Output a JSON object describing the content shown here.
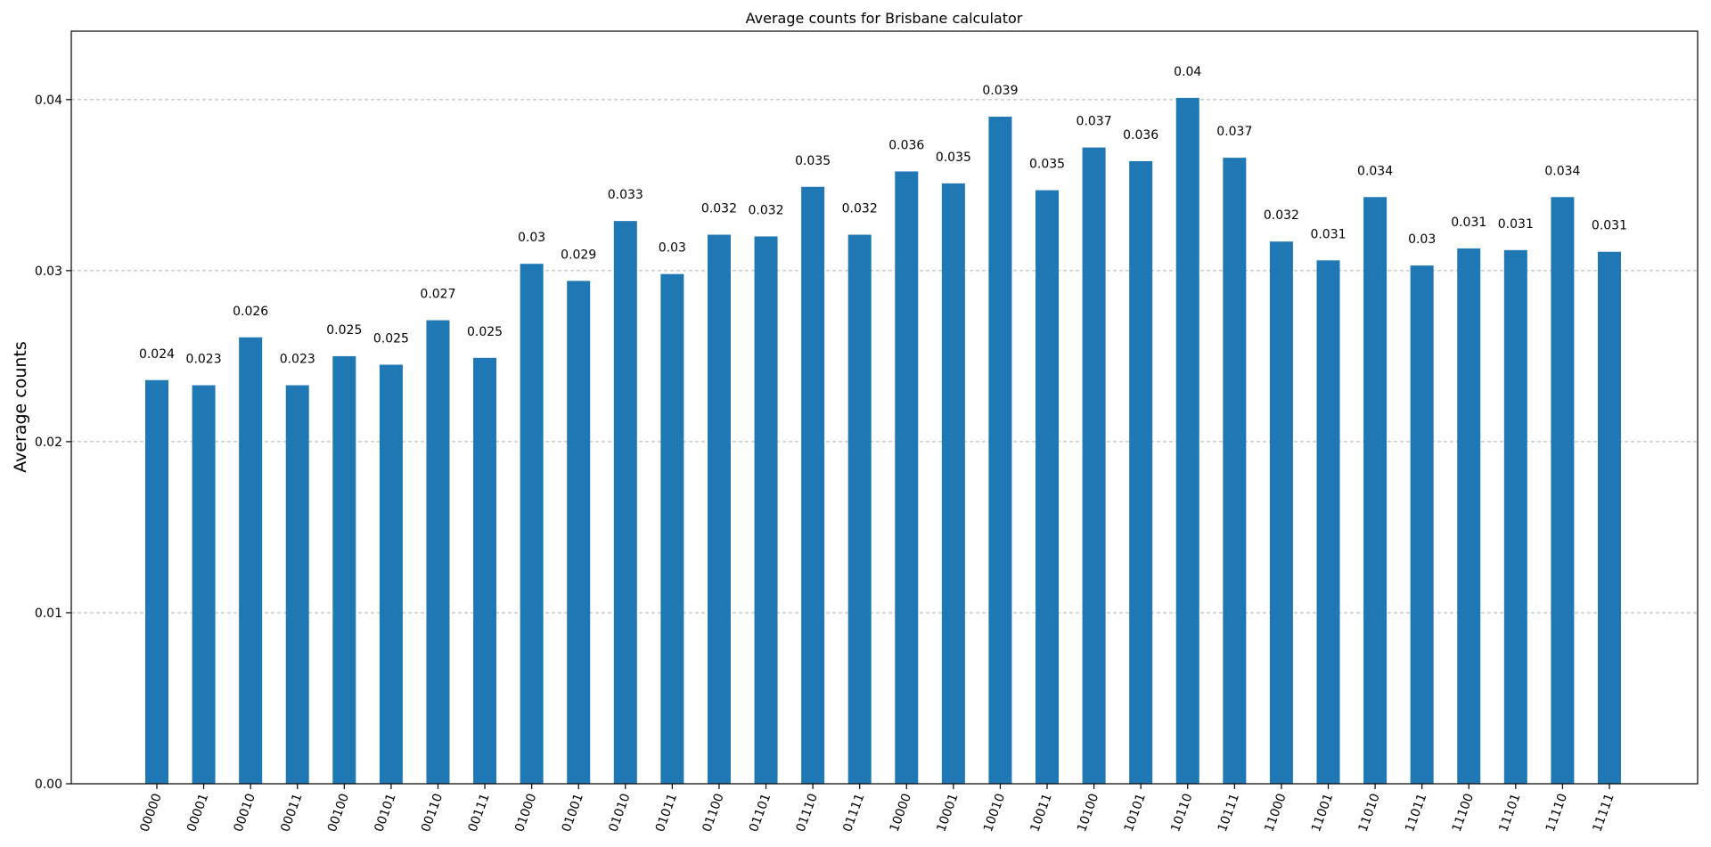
{
  "chart_data": {
    "type": "bar",
    "title": "Average counts for Brisbane calculator",
    "xlabel": "",
    "ylabel": "Average counts",
    "ylim": [
      0,
      0.044
    ],
    "yticks": [
      "0.00",
      "0.01",
      "0.02",
      "0.03",
      "0.04"
    ],
    "ytick_values": [
      0,
      0.01,
      0.02,
      0.03,
      0.04
    ],
    "grid": "horizontal-dashed",
    "bar_color": "#1f77b4",
    "categories": [
      "00000",
      "00001",
      "00010",
      "00011",
      "00100",
      "00101",
      "00110",
      "00111",
      "01000",
      "01001",
      "01010",
      "01011",
      "01100",
      "01101",
      "01110",
      "01111",
      "10000",
      "10001",
      "10010",
      "10011",
      "10100",
      "10101",
      "10110",
      "10111",
      "11000",
      "11001",
      "11010",
      "11011",
      "11100",
      "11101",
      "11110",
      "11111"
    ],
    "values": [
      0.0236,
      0.0233,
      0.0261,
      0.0233,
      0.025,
      0.0245,
      0.0271,
      0.0249,
      0.0304,
      0.0294,
      0.0329,
      0.0298,
      0.0321,
      0.032,
      0.0349,
      0.0321,
      0.0358,
      0.0351,
      0.039,
      0.0347,
      0.0372,
      0.0364,
      0.0401,
      0.0366,
      0.0317,
      0.0306,
      0.0343,
      0.0303,
      0.0313,
      0.0312,
      0.0343,
      0.0311
    ],
    "data_labels": [
      "0.024",
      "0.023",
      "0.026",
      "0.023",
      "0.025",
      "0.025",
      "0.027",
      "0.025",
      "0.03",
      "0.029",
      "0.033",
      "0.03",
      "0.032",
      "0.032",
      "0.035",
      "0.032",
      "0.036",
      "0.035",
      "0.039",
      "0.035",
      "0.037",
      "0.036",
      "0.04",
      "0.037",
      "0.032",
      "0.031",
      "0.034",
      "0.03",
      "0.031",
      "0.031",
      "0.034",
      "0.031"
    ]
  }
}
